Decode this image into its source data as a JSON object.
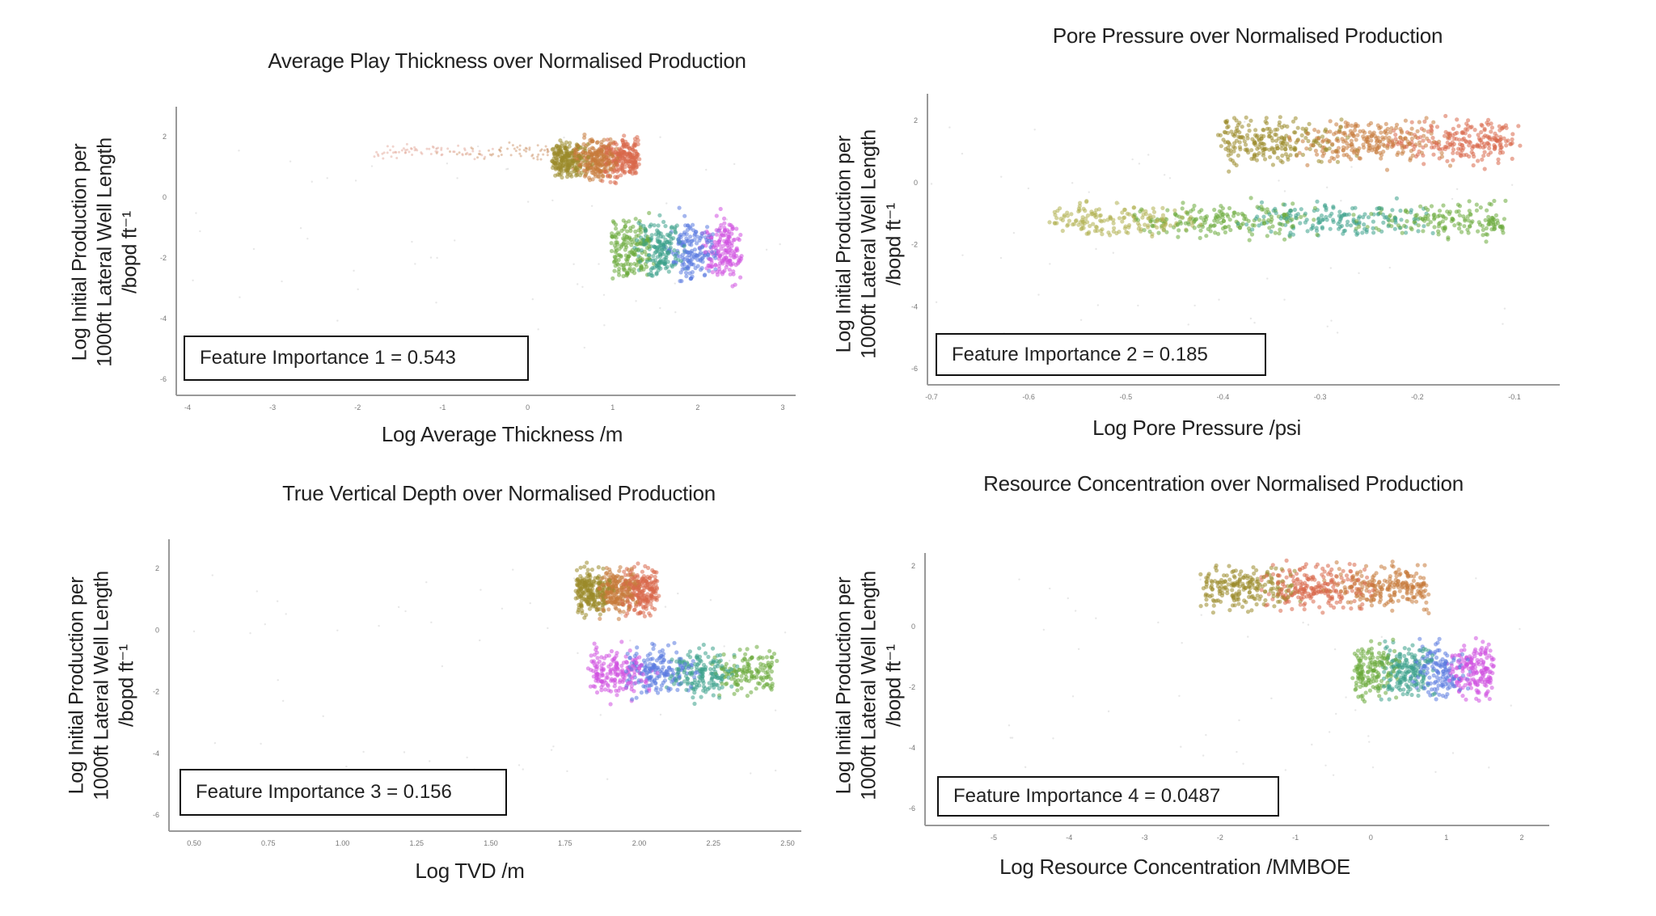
{
  "chart_data": [
    {
      "type": "scatter",
      "title": "Average Play Thickness over Normalised Production",
      "xlabel": "Log Average Thickness /m",
      "ylabel": [
        "Log Initial Production per",
        "1000ft Lateral Well Length",
        "/bopd ft⁻¹"
      ],
      "xticks": [
        "-4",
        "-3",
        "-2",
        "-1",
        "0",
        "1",
        "2",
        "3"
      ],
      "yticks": [
        "2",
        "0",
        "-2",
        "-4",
        "-6"
      ],
      "xlim": [
        -4,
        3
      ],
      "ylim": [
        -6,
        2
      ],
      "annotation": "Feature Importance  1 = 0.543",
      "clusters": [
        {
          "x_range": [
            0.3,
            1.3
          ],
          "y_range": [
            0.4,
            2.1
          ],
          "colors": [
            "#9a8a2a",
            "#c77a3a",
            "#d9674a"
          ]
        },
        {
          "x_range": [
            -1.8,
            0.3
          ],
          "y_range": [
            1.2,
            1.8
          ],
          "colors": [
            "#e0a090",
            "#c78a5a"
          ],
          "sparse": true
        },
        {
          "x_range": [
            1.0,
            2.5
          ],
          "y_range": [
            -3.0,
            -0.4
          ],
          "colors": [
            "#6aaa3a",
            "#3aa08a",
            "#5a7ae0",
            "#d050e0"
          ]
        }
      ]
    },
    {
      "type": "scatter",
      "title": "Pore Pressure over Normalised Production",
      "xlabel": "Log Pore Pressure /psi",
      "ylabel": [
        "Log Initial Production per",
        "1000ft Lateral Well Length",
        "/bopd ft⁻¹"
      ],
      "xticks": [
        "-0.7",
        "-0.6",
        "-0.5",
        "-0.4",
        "-0.3",
        "-0.2",
        "-0.1"
      ],
      "yticks": [
        "2",
        "0",
        "-2",
        "-4",
        "-6"
      ],
      "xlim": [
        -0.7,
        -0.1
      ],
      "ylim": [
        -6,
        2
      ],
      "annotation": "Feature Importance  2 = 0.185",
      "clusters": [
        {
          "x_range": [
            -0.4,
            -0.1
          ],
          "y_range": [
            0.4,
            2.3
          ],
          "colors": [
            "#9a8a2a",
            "#c77a3a",
            "#d9674a"
          ]
        },
        {
          "x_range": [
            -0.57,
            -0.11
          ],
          "y_range": [
            -1.9,
            -0.5
          ],
          "colors": [
            "#b0b050",
            "#6aaa3a",
            "#3aa08a",
            "#6aaa3a"
          ]
        }
      ]
    },
    {
      "type": "scatter",
      "title": "True Vertical Depth over Normalised Production",
      "xlabel": "Log TVD /m",
      "ylabel": [
        "Log Initial Production per",
        "1000ft Lateral Well Length",
        "/bopd ft⁻¹"
      ],
      "xticks": [
        "0.50",
        "0.75",
        "1.00",
        "1.25",
        "1.50",
        "1.75",
        "2.00",
        "2.25",
        "2.50"
      ],
      "yticks": [
        "2",
        "0",
        "-2",
        "-4",
        "-6"
      ],
      "xlim": [
        0.5,
        2.5
      ],
      "ylim": [
        -6,
        2
      ],
      "annotation": "Feature Importance  3 = 0.156",
      "clusters": [
        {
          "x_range": [
            1.79,
            2.06
          ],
          "y_range": [
            0.3,
            2.2
          ],
          "colors": [
            "#9a8a2a",
            "#c77a3a",
            "#d9674a"
          ]
        },
        {
          "x_range": [
            1.84,
            2.45
          ],
          "y_range": [
            -2.4,
            -0.35
          ],
          "colors": [
            "#d050e0",
            "#5a7ae0",
            "#3aa08a",
            "#6aaa3a"
          ]
        }
      ]
    },
    {
      "type": "scatter",
      "title": "Resource Concentration over Normalised Production",
      "xlabel": "Log Resource Concentration /MMBOE",
      "ylabel": [
        "Log Initial Production per",
        "1000ft Lateral Well Length",
        "/bopd ft⁻¹"
      ],
      "xticks": [
        "-5",
        "-4",
        "-3",
        "-2",
        "-1",
        "0",
        "1",
        "2"
      ],
      "yticks": [
        "2",
        "0",
        "-2",
        "-4",
        "-6"
      ],
      "xlim": [
        -5,
        2
      ],
      "ylim": [
        -6,
        2
      ],
      "annotation": "Feature Importance  4 = 0.0487",
      "clusters": [
        {
          "x_range": [
            -2.2,
            0.73
          ],
          "y_range": [
            0.4,
            2.2
          ],
          "colors": [
            "#9a8a2a",
            "#d9674a",
            "#c77a3a"
          ]
        },
        {
          "x_range": [
            -0.2,
            1.6
          ],
          "y_range": [
            -2.6,
            -0.3
          ],
          "colors": [
            "#6aaa3a",
            "#3aa08a",
            "#5a7ae0",
            "#d050e0"
          ]
        }
      ]
    }
  ]
}
